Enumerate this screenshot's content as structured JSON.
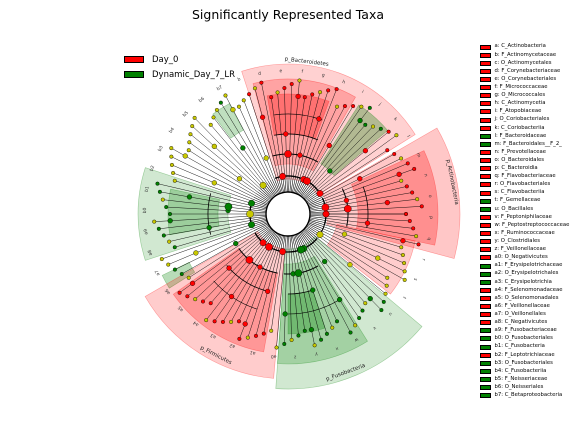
{
  "title": "Significantly Represented Taxa",
  "colors": {
    "day0": "#ff0000",
    "day7": "#008000",
    "nonsig": "#c8c800"
  },
  "class_legend": [
    {
      "label": "Day_0",
      "color": "#ff0000"
    },
    {
      "label": "Dynamic_Day_7_LR",
      "color": "#008000"
    }
  ],
  "chart_data": {
    "type": "cladogram",
    "title": "Significantly Represented Taxa",
    "phylum_labels": [
      {
        "name": "p_Bacteroidetes",
        "group": "Day_0"
      },
      {
        "name": "p_Actinobacteria",
        "group": "Day_0"
      },
      {
        "name": "p_Fusobacteria",
        "group": "Dynamic_Day_7_LR"
      },
      {
        "name": "p_Firmicutes",
        "group": "Day_0"
      }
    ],
    "taxa": [
      {
        "key": "a",
        "name": "C_Actinobacteria",
        "group": "Day_0"
      },
      {
        "key": "b",
        "name": "F_Actinomycetaceae",
        "group": "Day_0"
      },
      {
        "key": "c",
        "name": "O_Actinomycetales",
        "group": "Day_0"
      },
      {
        "key": "d",
        "name": "F_Corynebacteriaceae",
        "group": "Day_0"
      },
      {
        "key": "e",
        "name": "O_Corynebacteriales",
        "group": "Day_0"
      },
      {
        "key": "f",
        "name": "F_Micrococcaceae",
        "group": "Day_0"
      },
      {
        "key": "g",
        "name": "O_Micrococcales",
        "group": "Day_0"
      },
      {
        "key": "h",
        "name": "C_Actinomycetia",
        "group": "Day_0"
      },
      {
        "key": "i",
        "name": "F_Atopobiaceae",
        "group": "Day_0"
      },
      {
        "key": "j",
        "name": "O_Coriobacteriales",
        "group": "Day_0"
      },
      {
        "key": "k",
        "name": "C_Coriobacteriia",
        "group": "Day_0"
      },
      {
        "key": "l",
        "name": "F_Bacteroidaceae",
        "group": "Dynamic_Day_7_LR"
      },
      {
        "key": "m",
        "name": "F_Bacteroidales__F_2_",
        "group": "Dynamic_Day_7_LR"
      },
      {
        "key": "n",
        "name": "F_Prevotellaceae",
        "group": "Day_0"
      },
      {
        "key": "o",
        "name": "O_Bacteroidales",
        "group": "Day_0"
      },
      {
        "key": "p",
        "name": "C_Bacteroidia",
        "group": "Day_0"
      },
      {
        "key": "q",
        "name": "F_Flavobacteriaceae",
        "group": "Day_0"
      },
      {
        "key": "r",
        "name": "O_Flavobacteriales",
        "group": "Day_0"
      },
      {
        "key": "s",
        "name": "C_Flavobacteriia",
        "group": "Day_0"
      },
      {
        "key": "t",
        "name": "F_Gemellaceae",
        "group": "Dynamic_Day_7_LR"
      },
      {
        "key": "u",
        "name": "O_Bacillales",
        "group": "Dynamic_Day_7_LR"
      },
      {
        "key": "v",
        "name": "F_Peptoniphilaceae",
        "group": "Day_0"
      },
      {
        "key": "w",
        "name": "F_Peptostreptococcaceae",
        "group": "Day_0"
      },
      {
        "key": "x",
        "name": "F_Ruminococcaceae",
        "group": "Day_0"
      },
      {
        "key": "y",
        "name": "O_Clostridiales",
        "group": "Day_0"
      },
      {
        "key": "z",
        "name": "F_Veillonellaceae",
        "group": "Day_0"
      },
      {
        "key": "a0",
        "name": "O_Negativicutes",
        "group": "Day_0"
      },
      {
        "key": "a1",
        "name": "F_Erysipelotrichaceae",
        "group": "Dynamic_Day_7_LR"
      },
      {
        "key": "a2",
        "name": "O_Erysipelotrichales",
        "group": "Dynamic_Day_7_LR"
      },
      {
        "key": "a3",
        "name": "C_Erysipelotrichia",
        "group": "Dynamic_Day_7_LR"
      },
      {
        "key": "a4",
        "name": "F_Selenomonadaceae",
        "group": "Day_0"
      },
      {
        "key": "a5",
        "name": "O_Selenomonadales",
        "group": "Day_0"
      },
      {
        "key": "a6",
        "name": "F_Veillonellaceae",
        "group": "Day_0"
      },
      {
        "key": "a7",
        "name": "O_Veillonellales",
        "group": "Day_0"
      },
      {
        "key": "a8",
        "name": "C_Negativicutes",
        "group": "Day_0"
      },
      {
        "key": "a9",
        "name": "F_Fusobacteriaceae",
        "group": "Dynamic_Day_7_LR"
      },
      {
        "key": "b0",
        "name": "O_Fusobacteriales",
        "group": "Dynamic_Day_7_LR"
      },
      {
        "key": "b1",
        "name": "C_Fusobacteria",
        "group": "Dynamic_Day_7_LR"
      },
      {
        "key": "b2",
        "name": "F_Leptotrichiaceae",
        "group": "Day_0"
      },
      {
        "key": "b3",
        "name": "O_Fusobacteriales",
        "group": "Dynamic_Day_7_LR"
      },
      {
        "key": "b4",
        "name": "C_Fusobacteriia",
        "group": "Dynamic_Day_7_LR"
      },
      {
        "key": "b5",
        "name": "F_Neisseriaceae",
        "group": "Dynamic_Day_7_LR"
      },
      {
        "key": "b6",
        "name": "O_Neisseriales",
        "group": "Dynamic_Day_7_LR"
      },
      {
        "key": "b7",
        "name": "C_Betaproteobacteria",
        "group": "Dynamic_Day_7_LR"
      }
    ],
    "sector_letters": [
      "b",
      "d",
      "e",
      "f",
      "g",
      "h",
      "i",
      "j",
      "k",
      "l",
      "m",
      "n",
      "o",
      "p",
      "q",
      "r",
      "s",
      "t",
      "u",
      "v",
      "w",
      "x",
      "y",
      "z",
      "a0",
      "a1",
      "a2",
      "a3",
      "a4",
      "a5",
      "a6",
      "a7",
      "a8",
      "a9",
      "b0",
      "b1",
      "b2",
      "b3",
      "b4",
      "b5",
      "b6",
      "b7"
    ]
  }
}
